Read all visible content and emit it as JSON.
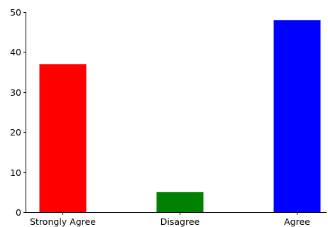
{
  "chart_data": {
    "type": "bar",
    "title": "",
    "xlabel": "",
    "ylabel": "",
    "categories": [
      "Strongly Agree",
      "Disagree",
      "Agree"
    ],
    "values": [
      37,
      5,
      48
    ],
    "colors": [
      "#ff0000",
      "#008000",
      "#0000ff"
    ],
    "ylim": [
      0,
      50
    ],
    "yticks": [
      0,
      10,
      20,
      30,
      40,
      50
    ],
    "grid": false,
    "legend": "none"
  }
}
